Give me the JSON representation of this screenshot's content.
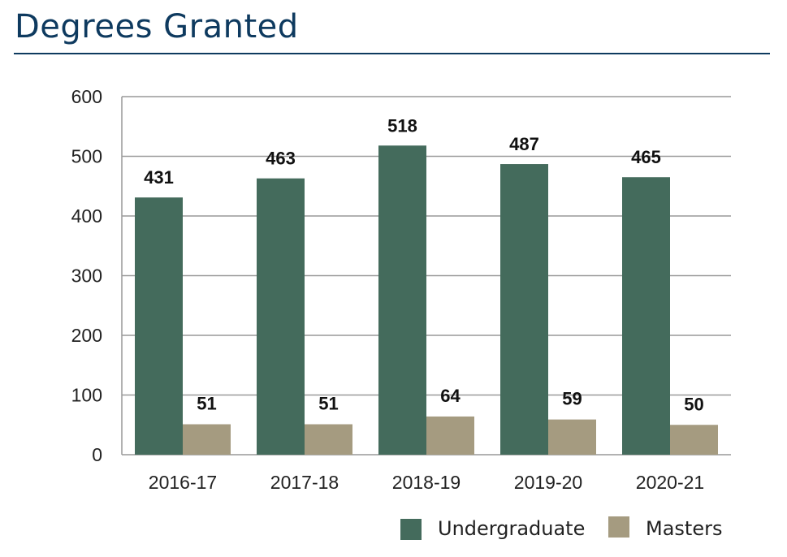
{
  "header": {
    "title": "Degrees Granted"
  },
  "chart_data": {
    "type": "bar",
    "title": "Degrees Granted",
    "categories": [
      "2016-17",
      "2017-18",
      "2018-19",
      "2019-20",
      "2020-21"
    ],
    "series": [
      {
        "name": "Undergraduate",
        "values": [
          431,
          463,
          518,
          487,
          465
        ],
        "color": "#446b5c"
      },
      {
        "name": "Masters",
        "values": [
          51,
          51,
          64,
          59,
          50
        ],
        "color": "#a59b80"
      }
    ],
    "yticks": [
      0,
      100,
      200,
      300,
      400,
      500,
      600
    ],
    "ylim": [
      0,
      600
    ],
    "xlabel": "",
    "ylabel": "",
    "grid": true,
    "legend": "bottom-right",
    "data_labels": true
  }
}
